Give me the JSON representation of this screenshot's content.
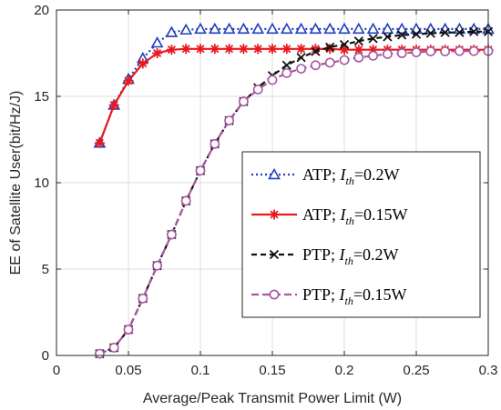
{
  "chart_data": {
    "type": "line",
    "title": "",
    "xlabel": "Average/Peak Transmit Power Limit (W)",
    "ylabel": "EE of Satellite User(bit/Hz/J)",
    "xlim": [
      0,
      0.3
    ],
    "ylim": [
      0,
      20
    ],
    "xticks": [
      0,
      0.05,
      0.1,
      0.15,
      0.2,
      0.25,
      0.3
    ],
    "xtick_labels": [
      "0",
      "0.05",
      "0.1",
      "0.15",
      "0.2",
      "0.25",
      "0.3"
    ],
    "yticks": [
      0,
      5,
      10,
      15,
      20
    ],
    "ytick_labels": [
      "0",
      "5",
      "10",
      "15",
      "20"
    ],
    "grid": true,
    "legend_position": "center-right",
    "x": [
      0.03,
      0.04,
      0.05,
      0.06,
      0.07,
      0.08,
      0.09,
      0.1,
      0.11,
      0.12,
      0.13,
      0.14,
      0.15,
      0.16,
      0.17,
      0.18,
      0.19,
      0.2,
      0.21,
      0.22,
      0.23,
      0.24,
      0.25,
      0.26,
      0.27,
      0.28,
      0.29,
      0.3
    ],
    "series": [
      {
        "name": "ATP; I_th=0.2W",
        "legend": {
          "prefix": "ATP; ",
          "var": "I",
          "sub": "th",
          "suffix": "=0.2W"
        },
        "color": "#1f3fbf",
        "dash": "2,3",
        "marker": "triangle",
        "values": [
          12.3,
          14.5,
          16.0,
          17.2,
          18.1,
          18.7,
          18.85,
          18.9,
          18.9,
          18.9,
          18.9,
          18.9,
          18.9,
          18.9,
          18.9,
          18.9,
          18.9,
          18.9,
          18.9,
          18.9,
          18.9,
          18.9,
          18.9,
          18.9,
          18.9,
          18.9,
          18.9,
          18.9
        ]
      },
      {
        "name": "ATP; I_th=0.15W",
        "legend": {
          "prefix": "ATP; ",
          "var": "I",
          "sub": "th",
          "suffix": "=0.15W"
        },
        "color": "#e8191f",
        "dash": "",
        "marker": "asterisk",
        "values": [
          12.3,
          14.5,
          15.9,
          16.9,
          17.5,
          17.7,
          17.75,
          17.75,
          17.75,
          17.75,
          17.75,
          17.75,
          17.75,
          17.75,
          17.75,
          17.75,
          17.75,
          17.7,
          17.7,
          17.7,
          17.7,
          17.7,
          17.7,
          17.7,
          17.7,
          17.7,
          17.7,
          17.7
        ]
      },
      {
        "name": "PTP; I_th=0.2W",
        "legend": {
          "prefix": "PTP; ",
          "var": "I",
          "sub": "th",
          "suffix": "=0.2W"
        },
        "color": "#111111",
        "dash": "6,4",
        "marker": "x",
        "values": [
          0.1,
          0.45,
          1.5,
          3.3,
          5.2,
          7.0,
          8.95,
          10.7,
          12.25,
          13.6,
          14.7,
          15.5,
          16.2,
          16.8,
          17.25,
          17.6,
          17.85,
          18.0,
          18.2,
          18.35,
          18.45,
          18.55,
          18.6,
          18.65,
          18.7,
          18.7,
          18.75,
          18.75
        ]
      },
      {
        "name": "PTP; I_th=0.15W",
        "legend": {
          "prefix": "PTP; ",
          "var": "I",
          "sub": "th",
          "suffix": "=0.15W"
        },
        "color": "#a8579f",
        "dash": "8,4",
        "marker": "circle",
        "values": [
          0.1,
          0.45,
          1.5,
          3.3,
          5.2,
          7.0,
          8.95,
          10.7,
          12.25,
          13.6,
          14.7,
          15.4,
          15.95,
          16.35,
          16.6,
          16.8,
          16.95,
          17.1,
          17.25,
          17.35,
          17.45,
          17.5,
          17.55,
          17.6,
          17.6,
          17.62,
          17.62,
          17.62
        ]
      }
    ]
  }
}
